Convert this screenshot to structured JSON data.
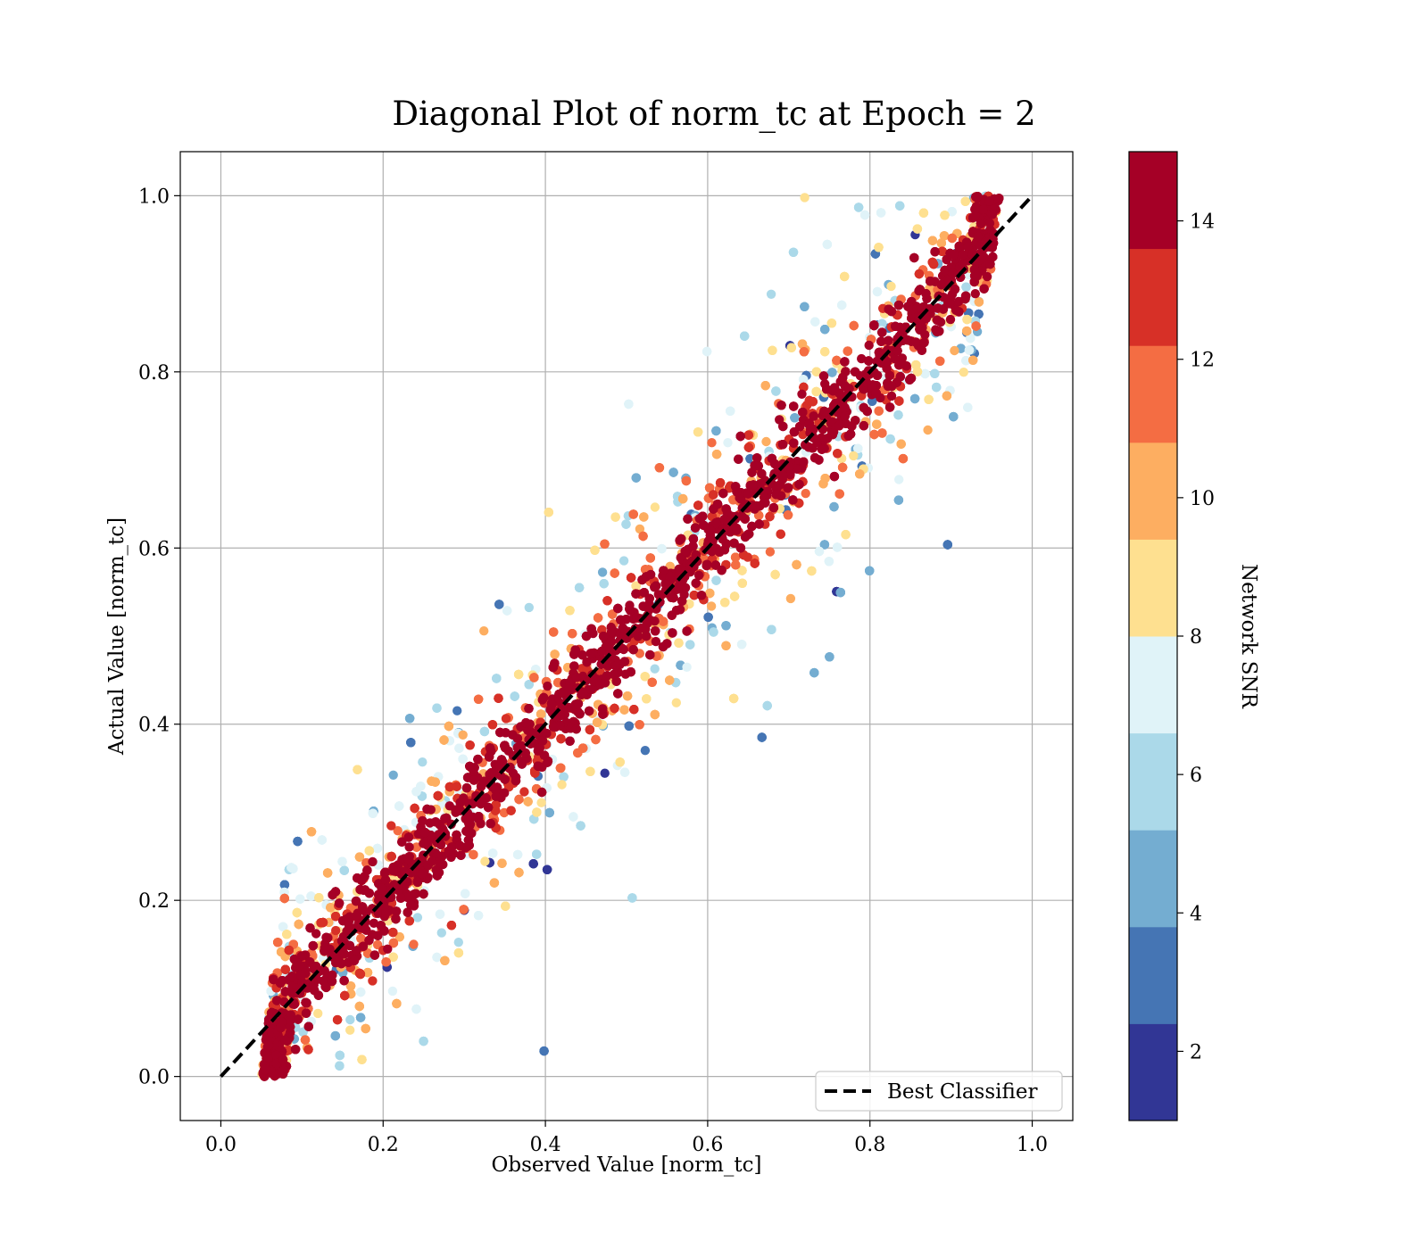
{
  "chart_data": {
    "type": "scatter",
    "title": "Diagonal Plot of norm_tc at Epoch = 2",
    "xlabel": "Observed Value [norm_tc]",
    "ylabel": "Actual Value [norm_tc]",
    "xlim": [
      -0.05,
      1.05
    ],
    "ylim": [
      -0.05,
      1.05
    ],
    "xticks": [
      "0.0",
      "0.2",
      "0.4",
      "0.6",
      "0.8",
      "1.0"
    ],
    "yticks": [
      "0.0",
      "0.2",
      "0.4",
      "0.6",
      "0.8",
      "1.0"
    ],
    "grid": true,
    "legend": {
      "placement": "lower-right",
      "entries": [
        "Best Classifier"
      ]
    },
    "reference_line": {
      "name": "Best Classifier",
      "x": [
        0.0,
        1.0
      ],
      "y": [
        0.0,
        1.0
      ],
      "style": "dashed",
      "color": "#000000"
    },
    "colorbar": {
      "label": "Network SNR",
      "range": [
        1,
        15
      ],
      "ticks": [
        "2",
        "4",
        "6",
        "8",
        "10",
        "12",
        "14"
      ],
      "bands": [
        {
          "from": 1.0,
          "to": 2.4,
          "color": "#313695"
        },
        {
          "from": 2.4,
          "to": 3.8,
          "color": "#4575b4"
        },
        {
          "from": 3.8,
          "to": 5.2,
          "color": "#74add1"
        },
        {
          "from": 5.2,
          "to": 6.6,
          "color": "#abd9e9"
        },
        {
          "from": 6.6,
          "to": 8.0,
          "color": "#e0f3f8"
        },
        {
          "from": 8.0,
          "to": 9.4,
          "color": "#fee090"
        },
        {
          "from": 9.4,
          "to": 10.8,
          "color": "#fdae61"
        },
        {
          "from": 10.8,
          "to": 12.2,
          "color": "#f46d43"
        },
        {
          "from": 12.2,
          "to": 13.6,
          "color": "#d73027"
        },
        {
          "from": 13.6,
          "to": 15.0,
          "color": "#a50026"
        }
      ]
    },
    "points_description": "Dense cloud of predictions around the diagonal; high SNR (dark red) points cluster tightly on y = x, low SNR points (blue) spread far from it. Observed values span roughly 0.05-0.96, actual values 0.0-1.0.",
    "point_distribution": {
      "x_range": [
        0.04,
        0.96
      ],
      "y_range": [
        0.0,
        1.0
      ],
      "center": "y = x",
      "spread_by_snr": "higher SNR -> narrower spread around diagonal"
    }
  }
}
